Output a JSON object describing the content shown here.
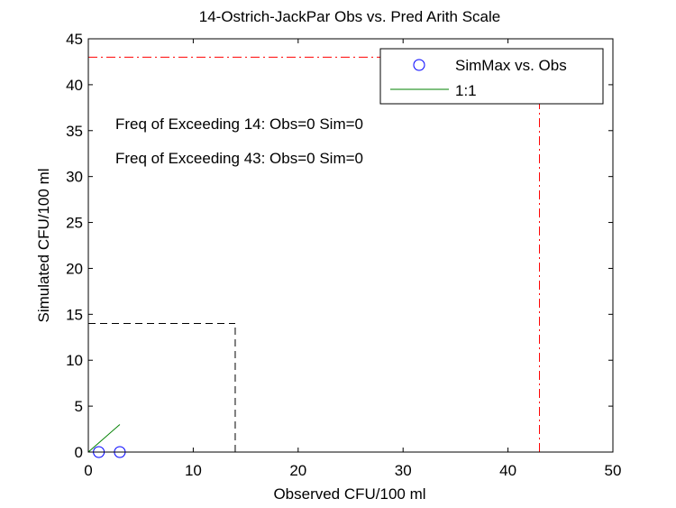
{
  "chart_data": {
    "type": "scatter",
    "title": "14-Ostrich-JackPar Obs vs. Pred Arith Scale",
    "xlabel": "Observed CFU/100 ml",
    "ylabel": "Simulated CFU/100 ml",
    "xlim": [
      0,
      50
    ],
    "ylim": [
      0,
      45
    ],
    "xticks": [
      0,
      10,
      20,
      30,
      40,
      50
    ],
    "yticks": [
      0,
      5,
      10,
      15,
      20,
      25,
      30,
      35,
      40,
      45
    ],
    "grid": false,
    "legend_position": "top-right",
    "series": [
      {
        "name": "SimMax vs. Obs",
        "kind": "scatter",
        "marker": "circle",
        "color": "#0000ff",
        "points": [
          [
            1,
            0
          ],
          [
            3,
            0
          ]
        ]
      },
      {
        "name": "1:1",
        "kind": "line",
        "color": "#008000",
        "points": [
          [
            0,
            0
          ],
          [
            3,
            3
          ]
        ]
      }
    ],
    "reference_lines": [
      {
        "threshold": 14,
        "style": "dashed",
        "color": "#000000"
      },
      {
        "threshold": 43,
        "style": "dash-dot",
        "color": "#ff0000"
      }
    ],
    "annotations": [
      "Freq of Exceeding 14: Obs=0 Sim=0",
      "Freq of Exceeding 43: Obs=0 Sim=0"
    ]
  }
}
